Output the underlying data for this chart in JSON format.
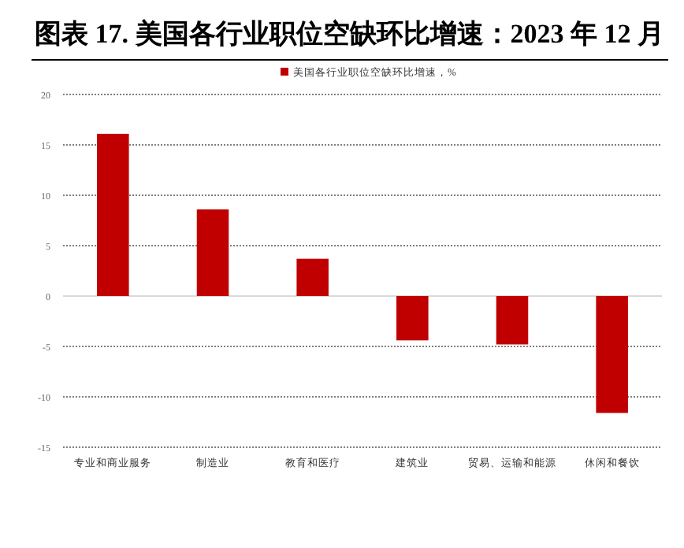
{
  "chart_data": {
    "type": "bar",
    "title": "图表 17. 美国各行业职位空缺环比增速：2023 年 12 月",
    "categories": [
      "专业和商业服务",
      "制造业",
      "教育和医疗",
      "建筑业",
      "贸易、运输和能源",
      "休闲和餐饮"
    ],
    "series": [
      {
        "name": "美国各行业职位空缺环比增速，%",
        "color": "#c00000",
        "values": [
          16.1,
          8.6,
          3.7,
          -4.4,
          -4.8,
          -11.6
        ]
      }
    ],
    "ylim": [
      -15,
      20
    ],
    "yticks": [
      -15,
      -10,
      -5,
      0,
      5,
      10,
      15,
      20
    ],
    "grid": "y",
    "legend": "top"
  }
}
